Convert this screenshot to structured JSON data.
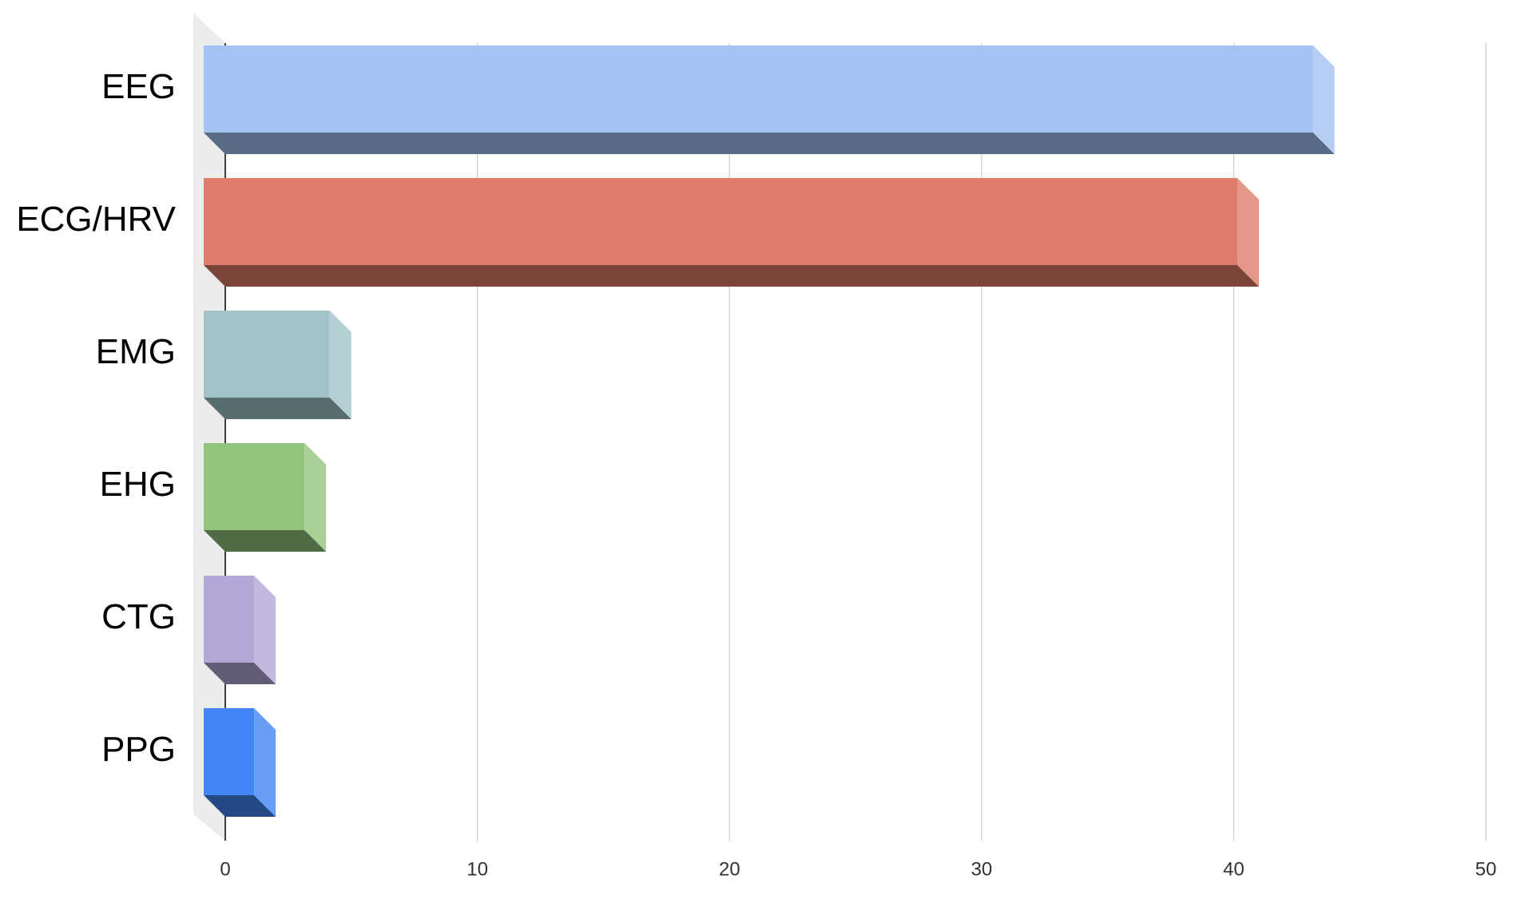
{
  "chart_data": {
    "type": "bar3d",
    "categories": [
      "EEG",
      "ECG/HRV",
      "EMG",
      "EHG",
      "CTG",
      "PPG"
    ],
    "values": [
      44,
      41,
      5,
      4,
      2,
      2
    ],
    "colors": [
      "#a4c2f4",
      "#df7d6b",
      "#a2c4c9",
      "#93c47d",
      "#b4a7d6",
      "#4285f4"
    ],
    "xlim": [
      0,
      50
    ],
    "xticks": [
      0,
      10,
      20,
      30,
      40,
      50
    ],
    "grid": true
  }
}
